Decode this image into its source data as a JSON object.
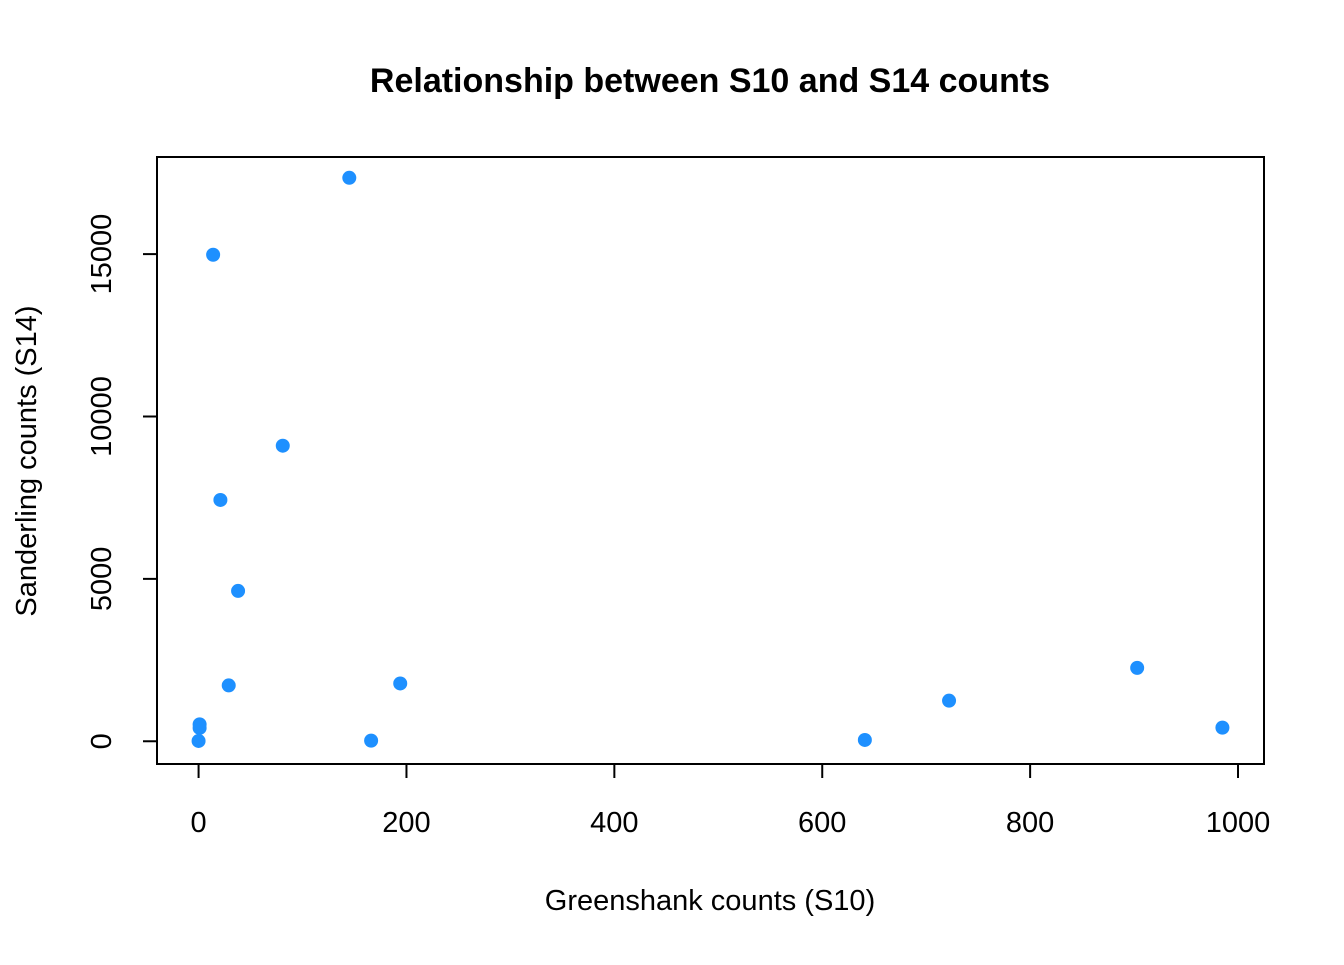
{
  "chart_data": {
    "type": "scatter",
    "title": "Relationship between S10 and S14 counts",
    "xlabel": "Greenshank counts (S10)",
    "ylabel": "Sanderling counts (S14)",
    "xlim": [
      -40,
      1025
    ],
    "ylim": [
      -700,
      17990
    ],
    "x_ticks": [
      0,
      200,
      400,
      600,
      800,
      1000
    ],
    "x_tick_labels": [
      "0",
      "200",
      "400",
      "600",
      "800",
      "1000"
    ],
    "y_ticks": [
      0,
      5000,
      10000,
      15000
    ],
    "y_tick_labels": [
      "0",
      "5000",
      "10000",
      "15000"
    ],
    "grid": false,
    "legend": "none",
    "point_color": "#1E90FF",
    "axis_color": "#000000",
    "points": [
      {
        "x": 145,
        "y": 17350
      },
      {
        "x": 14,
        "y": 14980
      },
      {
        "x": 81,
        "y": 9100
      },
      {
        "x": 21,
        "y": 7430
      },
      {
        "x": 38,
        "y": 4630
      },
      {
        "x": 29,
        "y": 1720
      },
      {
        "x": 194,
        "y": 1780
      },
      {
        "x": 1,
        "y": 520
      },
      {
        "x": 1,
        "y": 410
      },
      {
        "x": 0,
        "y": 10
      },
      {
        "x": 166,
        "y": 20
      },
      {
        "x": 641,
        "y": 40
      },
      {
        "x": 722,
        "y": 1250
      },
      {
        "x": 903,
        "y": 2260
      },
      {
        "x": 985,
        "y": 420
      }
    ]
  }
}
